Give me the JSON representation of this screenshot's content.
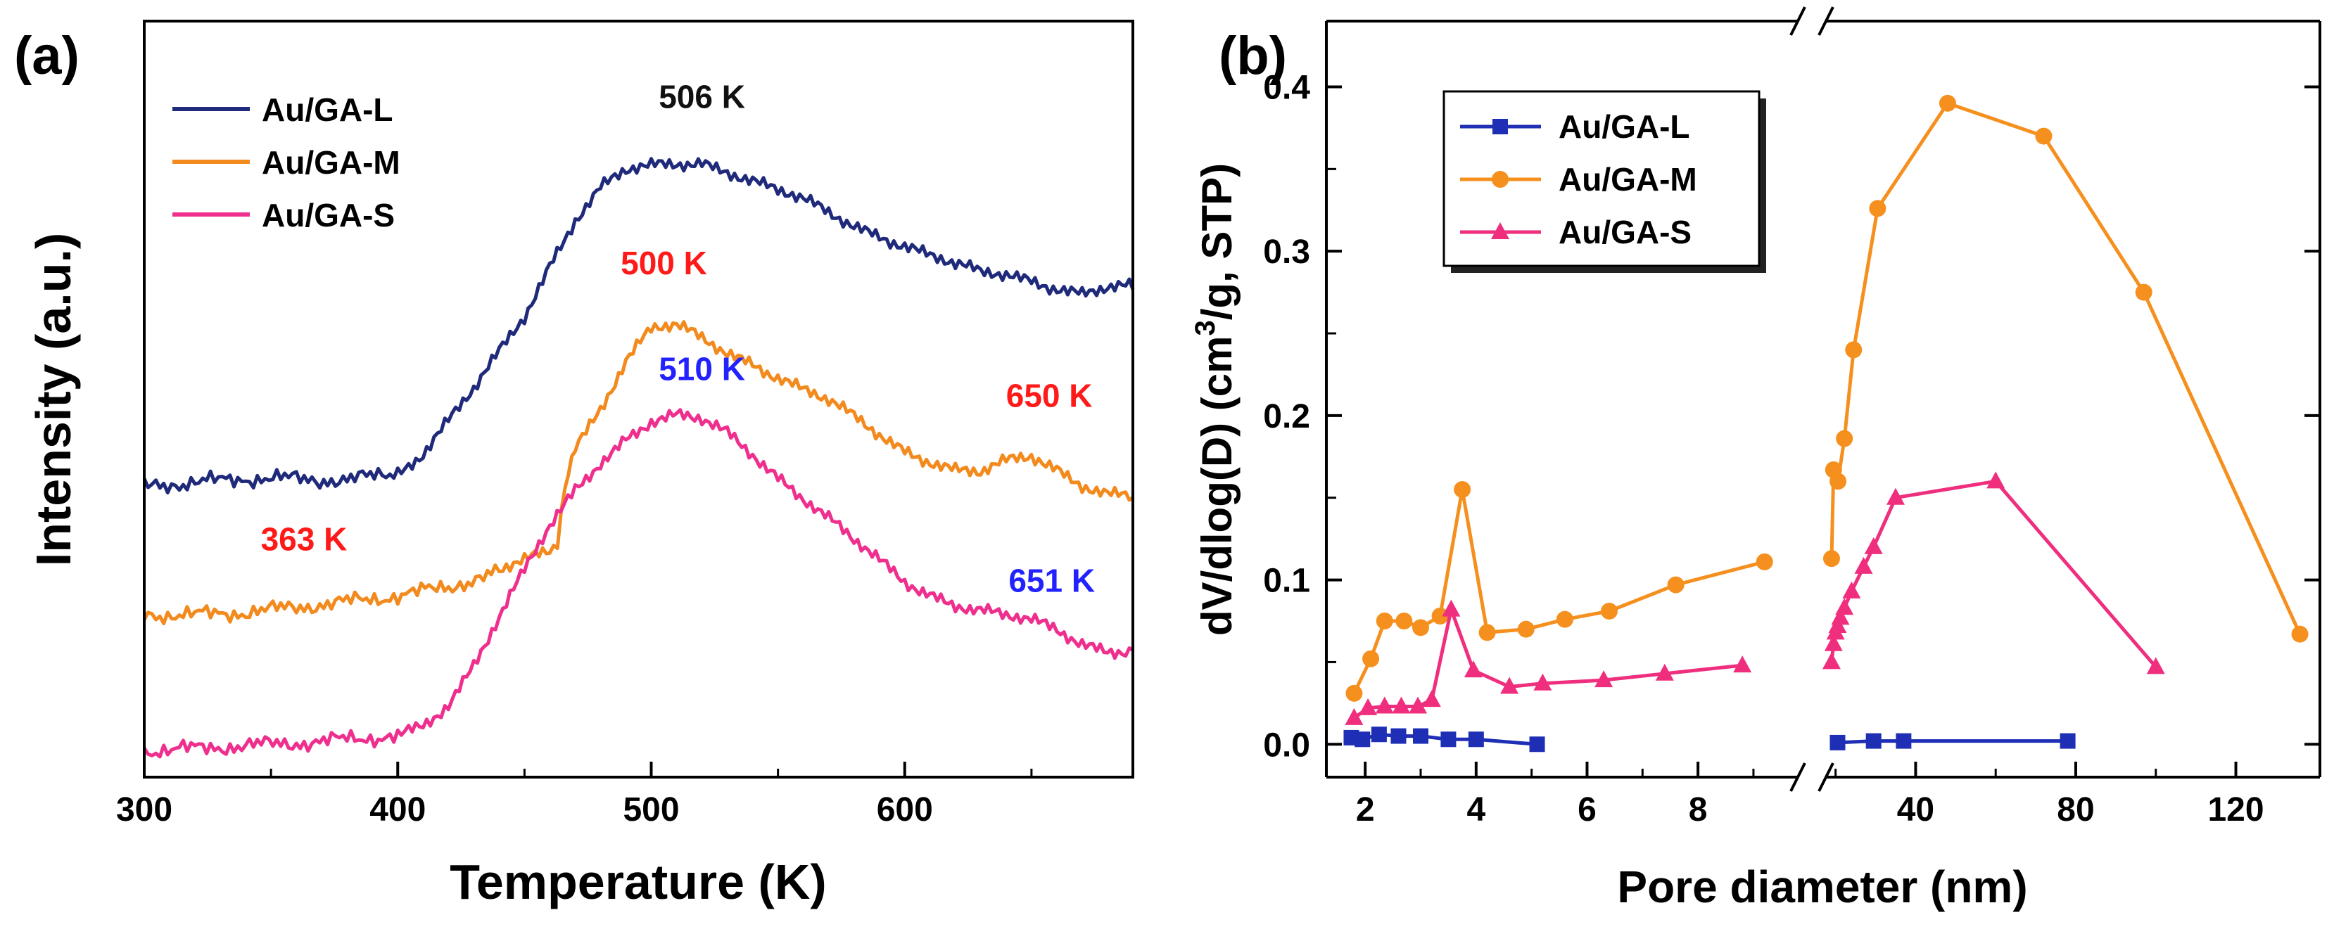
{
  "chart_data": [
    {
      "type": "line",
      "panel_label": "(a)",
      "xlabel": "Temperature (K)",
      "ylabel": "Intensity (a.u.)",
      "xlim": [
        300,
        690
      ],
      "ylim": [
        0,
        1
      ],
      "x_ticks": [
        300,
        400,
        500,
        600
      ],
      "y_ticks_shown": false,
      "legend": {
        "position": "top-left",
        "entries": [
          "Au/GA-L",
          "Au/GA-M",
          "Au/GA-S"
        ]
      },
      "series": [
        {
          "name": "Au/GA-L",
          "color": "#1f2a7a",
          "x": [
            300,
            320,
            340,
            360,
            380,
            400,
            410,
            420,
            430,
            440,
            450,
            460,
            470,
            480,
            490,
            500,
            510,
            520,
            530,
            540,
            550,
            560,
            570,
            580,
            590,
            600,
            610,
            620,
            630,
            640,
            650,
            660,
            670,
            680,
            690
          ],
          "y": [
            0.385,
            0.39,
            0.395,
            0.395,
            0.392,
            0.405,
            0.43,
            0.47,
            0.51,
            0.56,
            0.61,
            0.68,
            0.74,
            0.78,
            0.8,
            0.805,
            0.81,
            0.815,
            0.805,
            0.79,
            0.775,
            0.76,
            0.745,
            0.73,
            0.72,
            0.705,
            0.69,
            0.675,
            0.665,
            0.665,
            0.66,
            0.65,
            0.64,
            0.645,
            0.645
          ]
        },
        {
          "name": "Au/GA-M",
          "color": "#f28a1e",
          "x": [
            300,
            320,
            340,
            360,
            380,
            400,
            420,
            440,
            450,
            460,
            463,
            466,
            470,
            480,
            490,
            500,
            510,
            520,
            530,
            540,
            550,
            560,
            570,
            580,
            590,
            600,
            610,
            620,
            630,
            640,
            650,
            660,
            670,
            680,
            690
          ],
          "y": [
            0.215,
            0.215,
            0.218,
            0.225,
            0.232,
            0.24,
            0.252,
            0.27,
            0.285,
            0.3,
            0.31,
            0.38,
            0.44,
            0.49,
            0.55,
            0.59,
            0.595,
            0.58,
            0.565,
            0.55,
            0.53,
            0.51,
            0.495,
            0.475,
            0.455,
            0.435,
            0.42,
            0.405,
            0.4,
            0.415,
            0.425,
            0.41,
            0.39,
            0.375,
            0.37
          ]
        },
        {
          "name": "Au/GA-S",
          "color": "#ef2f8e",
          "x": [
            300,
            320,
            340,
            360,
            380,
            400,
            410,
            420,
            430,
            440,
            450,
            460,
            470,
            480,
            490,
            500,
            510,
            520,
            530,
            540,
            550,
            560,
            570,
            580,
            590,
            600,
            610,
            620,
            630,
            640,
            650,
            660,
            670,
            680,
            690
          ],
          "y": [
            0.035,
            0.038,
            0.042,
            0.045,
            0.05,
            0.055,
            0.07,
            0.1,
            0.15,
            0.21,
            0.27,
            0.33,
            0.38,
            0.42,
            0.45,
            0.47,
            0.475,
            0.47,
            0.455,
            0.43,
            0.4,
            0.37,
            0.34,
            0.31,
            0.285,
            0.26,
            0.245,
            0.23,
            0.22,
            0.21,
            0.205,
            0.195,
            0.18,
            0.17,
            0.168
          ]
        }
      ],
      "annotations": [
        {
          "text": "506 K",
          "color": "#111111",
          "x": 520,
          "y": 0.885
        },
        {
          "text": "500 K",
          "color": "#ff1a1a",
          "x": 505,
          "y": 0.665
        },
        {
          "text": "650 K",
          "color": "#ff1a1a",
          "x": 657,
          "y": 0.49
        },
        {
          "text": "510 K",
          "color": "#2222ff",
          "x": 520,
          "y": 0.525
        },
        {
          "text": "363 K",
          "color": "#ff1a1a",
          "x": 363,
          "y": 0.3
        },
        {
          "text": "651 K",
          "color": "#2222ff",
          "x": 658,
          "y": 0.245
        }
      ]
    },
    {
      "type": "line",
      "panel_label": "(b)",
      "xlabel": "Pore  diameter (nm)",
      "ylabel_parts": [
        "dV/dlog(D)  (cm",
        "3",
        "/g, STP)"
      ],
      "ylim": [
        -0.02,
        0.44
      ],
      "y_ticks": [
        0.0,
        0.1,
        0.2,
        0.3,
        0.4
      ],
      "y_tick_labels": [
        "0.0",
        "0.1",
        "0.2",
        "0.3",
        "0.4"
      ],
      "x_axis_break": true,
      "x_segments": [
        {
          "range": [
            1.3,
            9.8
          ],
          "ticks": [
            2,
            4,
            6,
            8
          ],
          "tick_labels": [
            "2",
            "4",
            "6",
            "8"
          ]
        },
        {
          "range": [
            17.6,
            141
          ],
          "ticks": [
            40,
            80,
            120
          ],
          "tick_labels": [
            "40",
            "80",
            "120"
          ]
        }
      ],
      "legend": {
        "position": "top-left",
        "entries": [
          "Au/GA-L",
          "Au/GA-M",
          "Au/GA-S"
        ]
      },
      "series": [
        {
          "name": "Au/GA-L",
          "color": "#1f2fb5",
          "marker": "square",
          "x": [
            1.75,
            1.95,
            2.25,
            2.6,
            3.0,
            3.5,
            4.0,
            5.1,
            20.5,
            29.5,
            37.0,
            78.0
          ],
          "y": [
            0.004,
            0.003,
            0.006,
            0.005,
            0.005,
            0.003,
            0.003,
            0.0,
            0.001,
            0.002,
            0.002,
            0.002
          ]
        },
        {
          "name": "Au/GA-M",
          "color": "#f5901e",
          "marker": "circle",
          "x": [
            1.8,
            2.1,
            2.35,
            2.7,
            3.0,
            3.35,
            3.75,
            4.2,
            4.9,
            5.6,
            6.4,
            7.6,
            9.2,
            19.0,
            19.5,
            20.6,
            22.2,
            24.5,
            30.5,
            48.0,
            72.0,
            97.0,
            136.0
          ],
          "y": [
            0.031,
            0.052,
            0.075,
            0.075,
            0.071,
            0.078,
            0.155,
            0.068,
            0.07,
            0.076,
            0.081,
            0.097,
            0.111,
            0.113,
            0.167,
            0.16,
            0.186,
            0.24,
            0.326,
            0.39,
            0.37,
            0.275,
            0.067
          ]
        },
        {
          "name": "Au/GA-S",
          "color": "#ef2f7e",
          "marker": "triangle",
          "x": [
            1.8,
            2.05,
            2.35,
            2.65,
            2.95,
            3.2,
            3.55,
            3.95,
            4.6,
            5.2,
            6.3,
            7.4,
            8.8,
            19.0,
            19.5,
            20.0,
            20.5,
            21.2,
            22.2,
            24.0,
            27.0,
            29.5,
            35.0,
            60.0,
            100.0
          ],
          "y": [
            0.016,
            0.022,
            0.023,
            0.023,
            0.023,
            0.027,
            0.082,
            0.045,
            0.035,
            0.037,
            0.039,
            0.043,
            0.048,
            0.05,
            0.061,
            0.068,
            0.072,
            0.077,
            0.083,
            0.093,
            0.108,
            0.12,
            0.15,
            0.16,
            0.047
          ]
        }
      ]
    }
  ]
}
